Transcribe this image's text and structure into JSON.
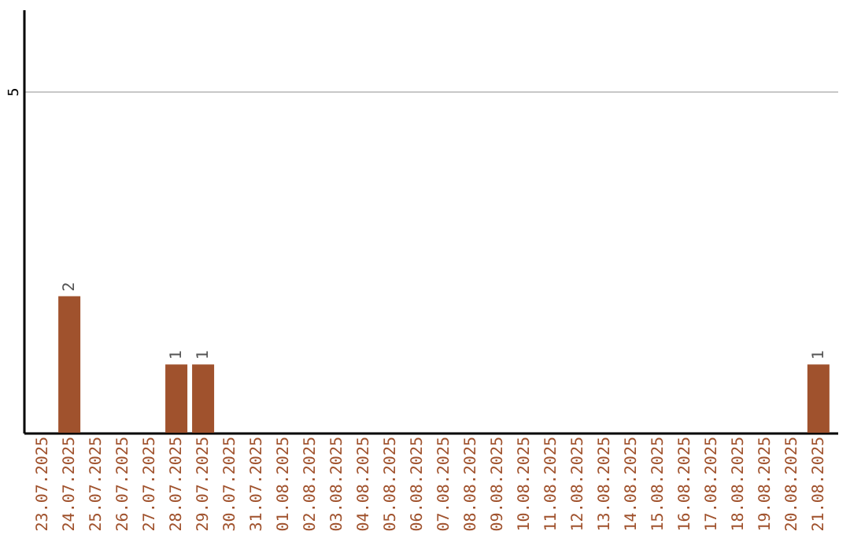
{
  "chart_data": {
    "type": "bar",
    "categories": [
      "23.07.2025",
      "24.07.2025",
      "25.07.2025",
      "26.07.2025",
      "27.07.2025",
      "28.07.2025",
      "29.07.2025",
      "30.07.2025",
      "31.07.2025",
      "01.08.2025",
      "02.08.2025",
      "03.08.2025",
      "04.08.2025",
      "05.08.2025",
      "06.08.2025",
      "07.08.2025",
      "08.08.2025",
      "09.08.2025",
      "10.08.2025",
      "11.08.2025",
      "12.08.2025",
      "13.08.2025",
      "14.08.2025",
      "15.08.2025",
      "16.08.2025",
      "17.08.2025",
      "18.08.2025",
      "19.08.2025",
      "20.08.2025",
      "21.08.2025"
    ],
    "values": [
      0,
      2,
      0,
      0,
      0,
      1,
      1,
      0,
      0,
      0,
      0,
      0,
      0,
      0,
      0,
      0,
      0,
      0,
      0,
      0,
      0,
      0,
      0,
      0,
      0,
      0,
      0,
      0,
      0,
      1
    ],
    "value_labels": [
      null,
      "2",
      null,
      null,
      null,
      "1",
      "1",
      null,
      null,
      null,
      null,
      null,
      null,
      null,
      null,
      null,
      null,
      null,
      null,
      null,
      null,
      null,
      null,
      null,
      null,
      null,
      null,
      null,
      null,
      "1"
    ],
    "color": "#a0522d",
    "ylim": [
      0,
      6.2
    ],
    "yticks": [
      5
    ],
    "grid": "y"
  }
}
